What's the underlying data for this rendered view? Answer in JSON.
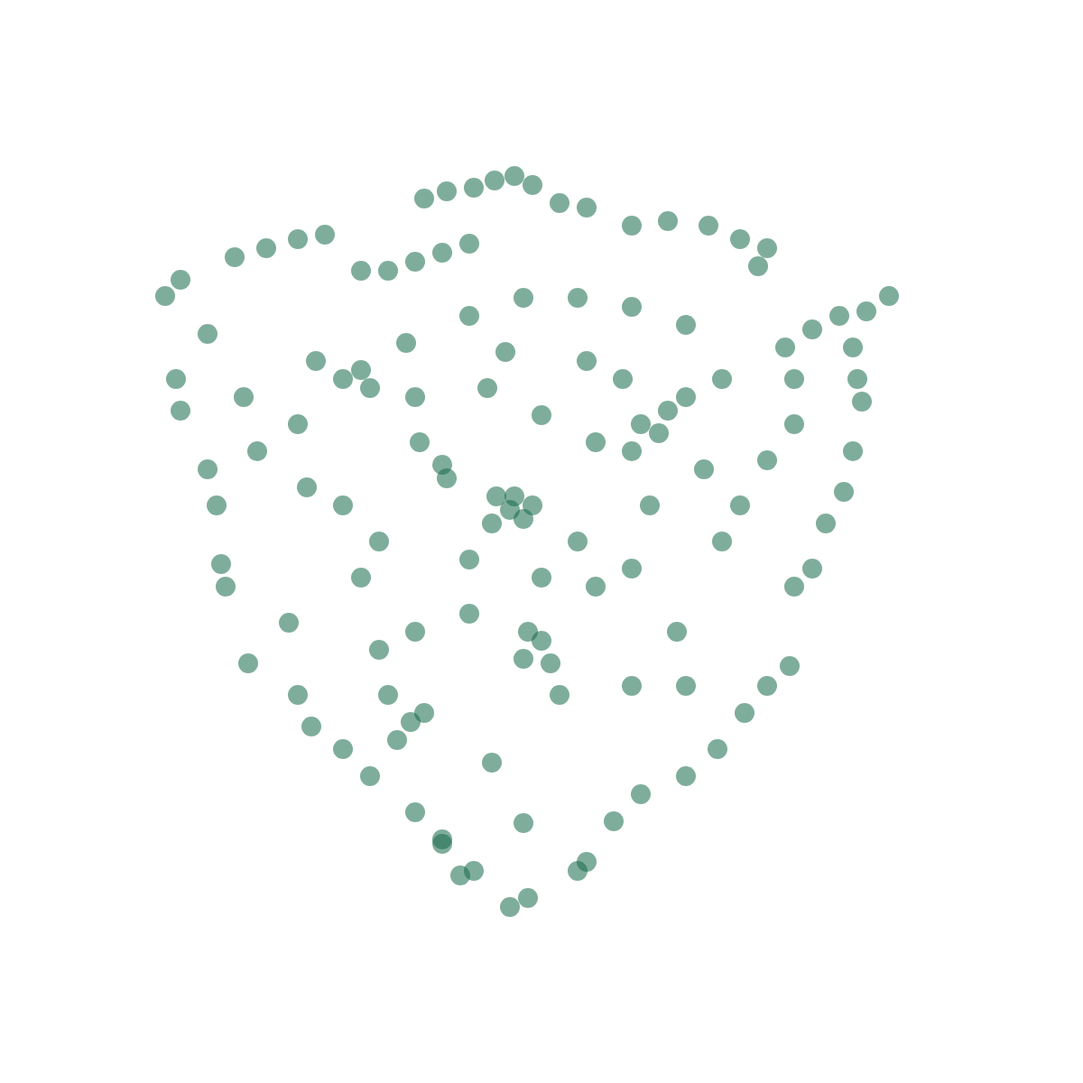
{
  "chart_data": {
    "type": "scatter",
    "marker": "circle",
    "color": "#16694a",
    "tick_labels": false,
    "xlim": [
      0,
      1200
    ],
    "ylim": [
      0,
      1200
    ],
    "x": [
      470,
      495,
      525,
      548,
      570,
      590,
      620,
      650,
      700,
      740,
      785,
      820,
      850,
      840,
      183,
      200,
      230,
      260,
      295,
      330,
      360,
      400,
      430,
      460,
      490,
      520,
      985,
      960,
      930,
      900,
      870,
      945,
      880,
      195,
      200,
      270,
      285,
      230,
      240,
      245,
      250,
      275,
      320,
      330,
      345,
      380,
      410,
      460,
      490,
      525,
      565,
      585,
      950,
      955,
      945,
      935,
      915,
      900,
      880,
      875,
      850,
      825,
      795,
      760,
      710,
      680,
      650,
      640,
      580,
      545,
      510,
      490,
      565,
      550,
      580,
      490,
      465,
      710,
      740,
      760,
      660,
      600,
      580,
      455,
      430,
      400,
      420,
      520,
      600,
      660,
      700,
      750,
      800,
      820,
      850,
      880,
      800,
      760,
      700,
      640,
      580,
      520,
      450,
      400,
      350,
      330,
      340,
      380,
      460,
      520,
      620,
      700,
      760,
      640,
      720,
      780,
      600,
      540,
      460,
      560,
      650,
      690,
      570,
      545,
      590,
      495,
      730,
      700,
      440,
      470,
      585,
      610,
      420,
      380,
      410
    ],
    "values": [
      980,
      988,
      992,
      1000,
      1005,
      995,
      975,
      970,
      950,
      955,
      950,
      935,
      925,
      905,
      872,
      890,
      830,
      915,
      925,
      935,
      940,
      900,
      900,
      910,
      920,
      930,
      872,
      855,
      850,
      835,
      815,
      815,
      780,
      780,
      745,
      760,
      700,
      680,
      640,
      575,
      550,
      465,
      510,
      430,
      395,
      370,
      340,
      300,
      270,
      235,
      195,
      205,
      780,
      755,
      700,
      655,
      620,
      570,
      550,
      462,
      440,
      410,
      370,
      340,
      320,
      290,
      245,
      235,
      288,
      355,
      230,
      265,
      635,
      650,
      625,
      685,
      710,
      730,
      745,
      760,
      710,
      490,
      470,
      400,
      430,
      560,
      600,
      580,
      560,
      550,
      570,
      500,
      600,
      640,
      690,
      730,
      780,
      840,
      860,
      870,
      870,
      850,
      820,
      790,
      800,
      730,
      660,
      640,
      500,
      520,
      430,
      440,
      440,
      600,
      640,
      680,
      740,
      770,
      760,
      810,
      800,
      780,
      650,
      620,
      640,
      670,
      720,
      700,
      380,
      410,
      500,
      465,
      480,
      780,
      770
    ]
  }
}
